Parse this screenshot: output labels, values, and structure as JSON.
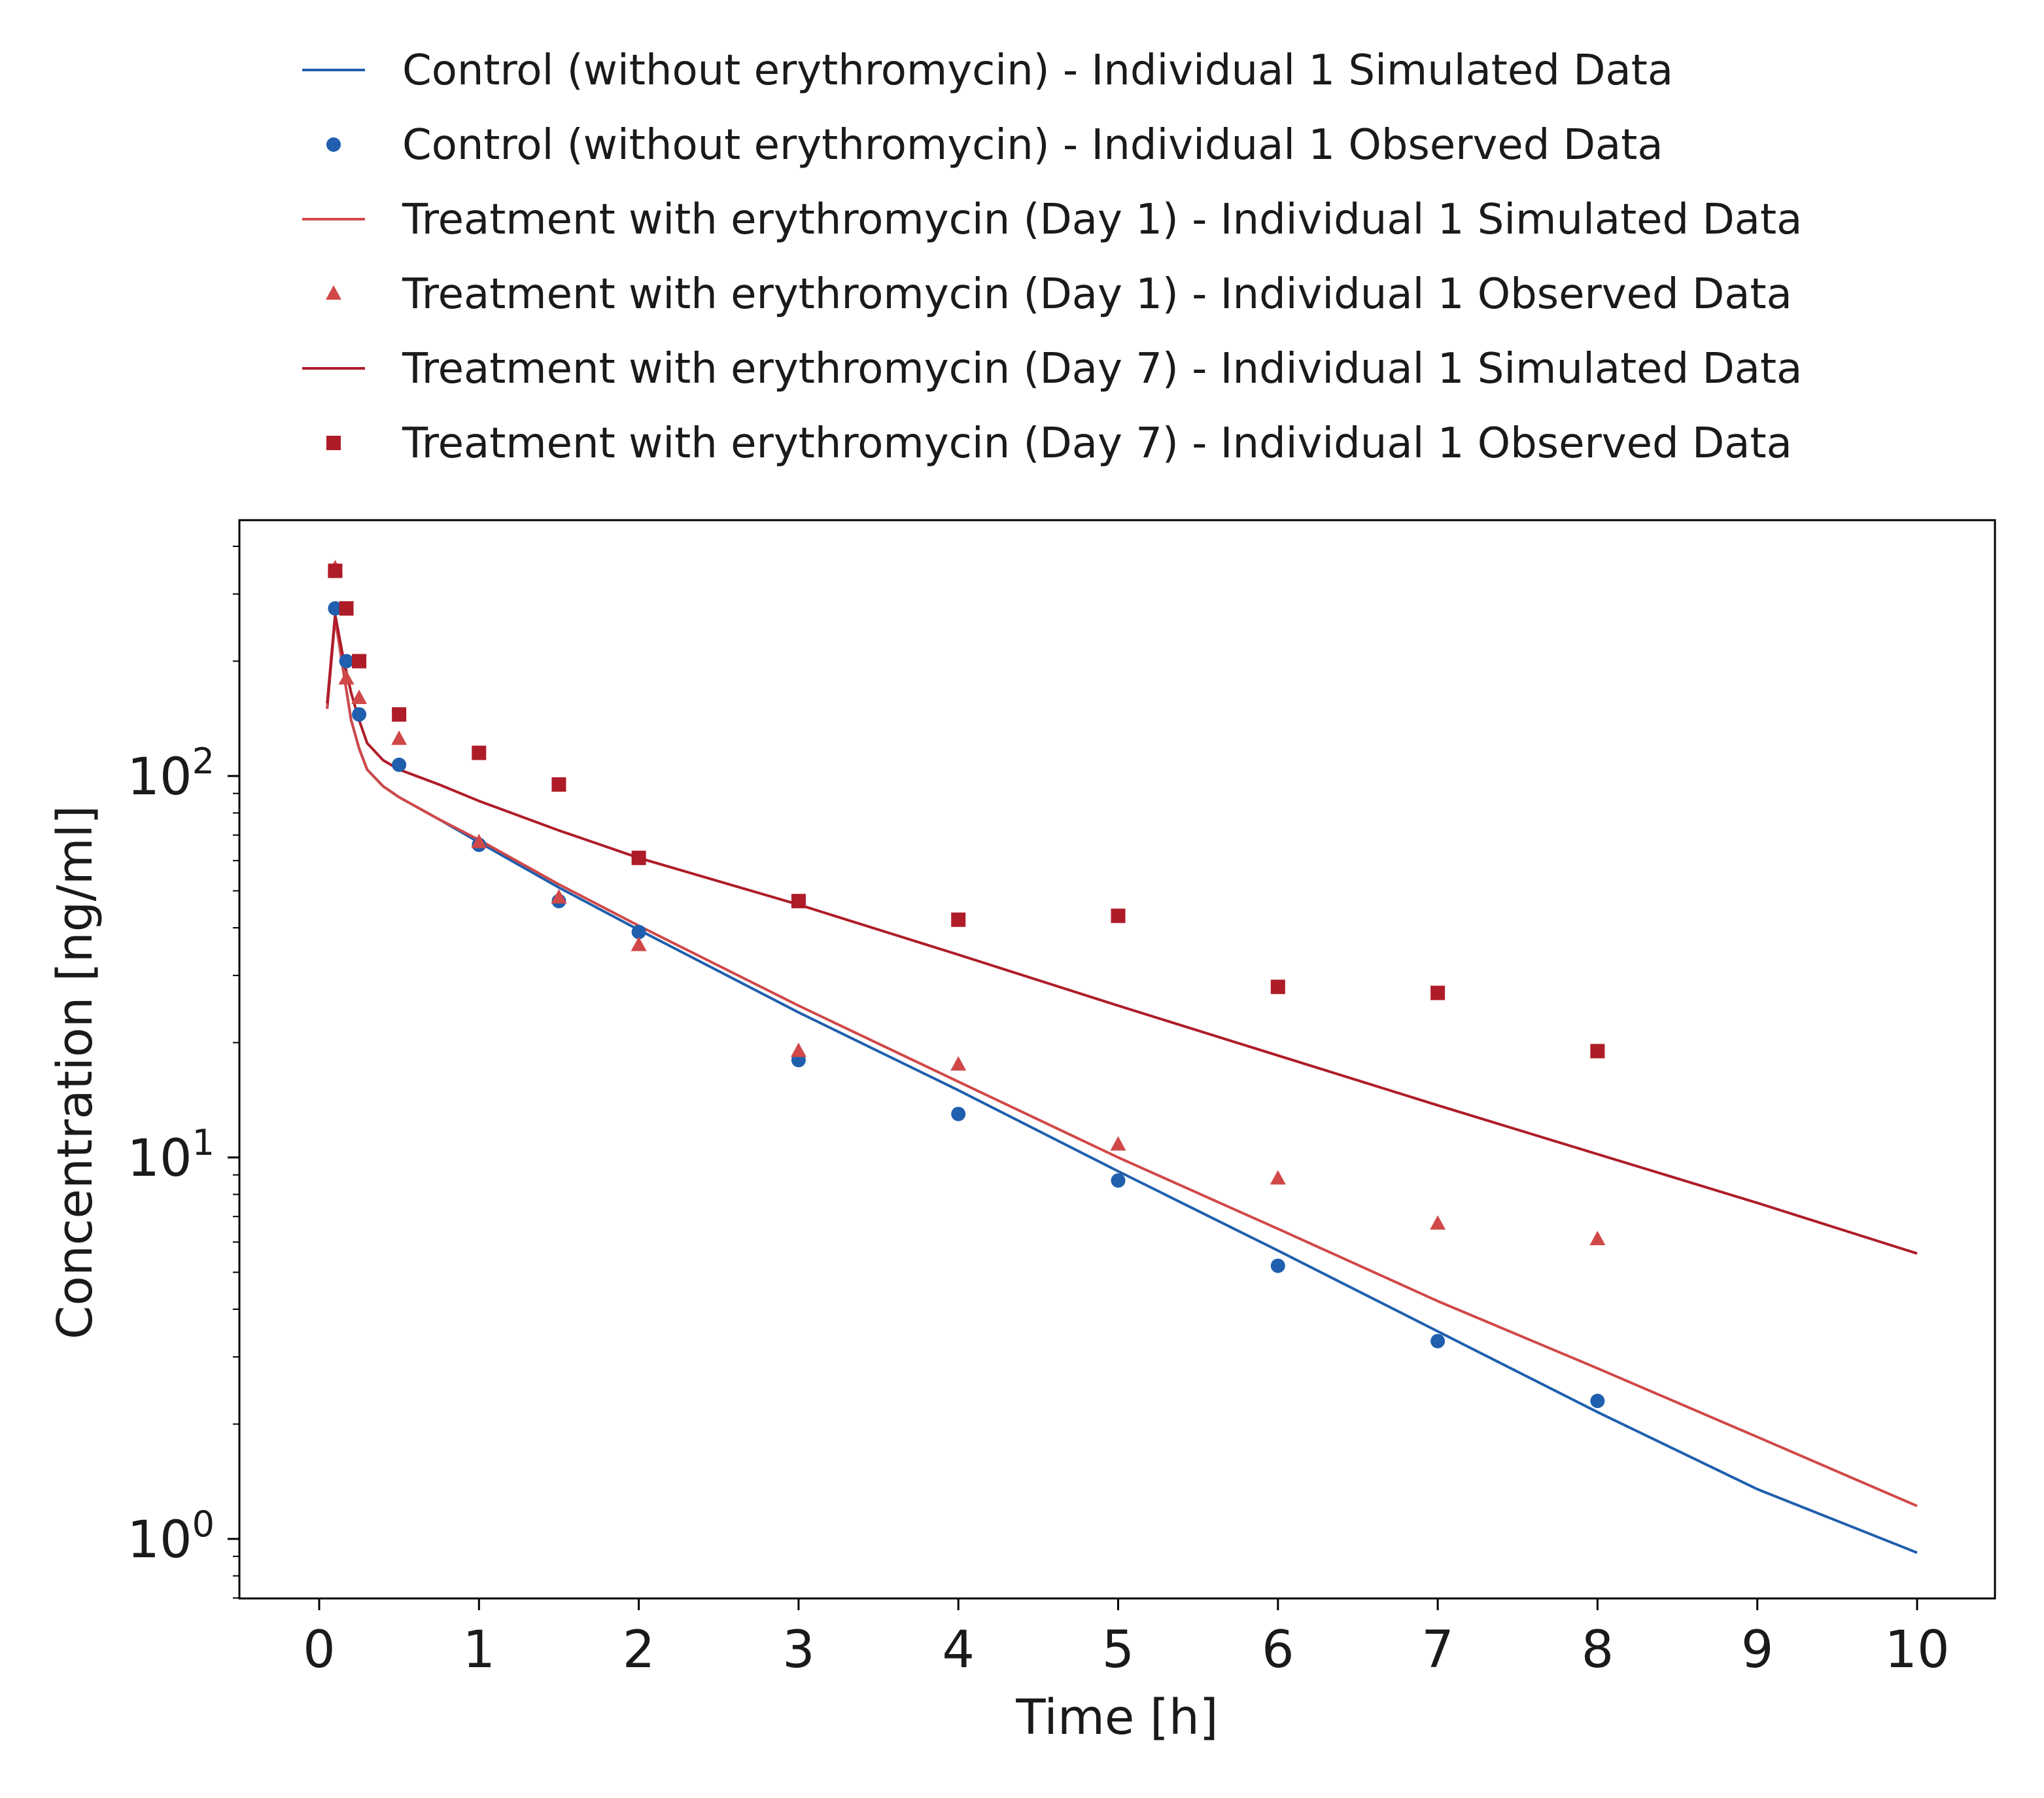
{
  "chart_data": {
    "type": "scatter",
    "xlabel": "Time [h]",
    "ylabel": "Concentration [ng/ml]",
    "xlim": [
      -0.5,
      10.5
    ],
    "ylim": [
      0.65,
      600
    ],
    "yscale": "log",
    "xticks": [
      0,
      1,
      2,
      3,
      4,
      5,
      6,
      7,
      8,
      9,
      10
    ],
    "yticks": [
      {
        "value": 1,
        "base": "10",
        "exp": "0"
      },
      {
        "value": 10,
        "base": "10",
        "exp": "1"
      },
      {
        "value": 100,
        "base": "10",
        "exp": "2"
      }
    ],
    "grid": false,
    "legend_position": "top",
    "series": [
      {
        "name": "Control (without erythromycin) - Individual 1 Simulated Data",
        "kind": "line",
        "color": "#1f5fad",
        "x": [
          0.05,
          0.1,
          0.15,
          0.2,
          0.25,
          0.3,
          0.4,
          0.5,
          0.75,
          1,
          1.5,
          2,
          3,
          4,
          5,
          6,
          7,
          8,
          9,
          10
        ],
        "y": [
          150,
          260,
          190,
          140,
          118,
          104,
          94,
          88,
          77,
          67,
          51,
          39.5,
          24,
          15,
          9.2,
          5.7,
          3.5,
          2.15,
          1.35,
          0.92
        ]
      },
      {
        "name": "Control (without erythromycin) - Individual 1 Observed Data",
        "kind": "marker",
        "marker": "circle",
        "color": "#1f5fad",
        "x": [
          0.1,
          0.17,
          0.25,
          0.5,
          1,
          1.5,
          2,
          3,
          4,
          5,
          6,
          7,
          8
        ],
        "y": [
          275,
          200,
          145,
          107,
          66,
          47,
          39,
          18,
          13,
          8.7,
          5.2,
          3.3,
          2.3
        ]
      },
      {
        "name": "Treatment with erythromycin (Day 1) - Individual 1 Simulated Data",
        "kind": "line",
        "color": "#d04848",
        "x": [
          0.05,
          0.1,
          0.15,
          0.2,
          0.25,
          0.3,
          0.4,
          0.5,
          0.75,
          1,
          1.5,
          2,
          3,
          4,
          5,
          6,
          7,
          8,
          9,
          10
        ],
        "y": [
          150,
          260,
          190,
          140,
          118,
          104,
          94,
          88,
          77,
          68,
          52,
          40.5,
          25,
          15.8,
          10,
          6.5,
          4.2,
          2.8,
          1.85,
          1.22
        ]
      },
      {
        "name": "Treatment with erythromycin (Day 1) - Individual 1 Observed Data",
        "kind": "marker",
        "marker": "triangle",
        "color": "#d04848",
        "x": [
          0.1,
          0.17,
          0.25,
          0.5,
          1,
          1.5,
          2,
          3,
          4,
          5,
          6,
          7,
          8
        ],
        "y": [
          350,
          180,
          160,
          125,
          67,
          48,
          36,
          19,
          17.5,
          10.8,
          8.8,
          6.7,
          6.1
        ]
      },
      {
        "name": "Treatment with erythromycin (Day 7) - Individual 1 Simulated Data",
        "kind": "line",
        "color": "#ae1c28",
        "x": [
          0.05,
          0.1,
          0.15,
          0.2,
          0.25,
          0.3,
          0.4,
          0.5,
          0.75,
          1,
          1.5,
          2,
          3,
          4,
          5,
          6,
          7,
          8,
          9,
          10
        ],
        "y": [
          155,
          265,
          205,
          165,
          140,
          122,
          110,
          104,
          95,
          86,
          72,
          61,
          46,
          34,
          25,
          18.5,
          13.7,
          10.2,
          7.6,
          5.6
        ]
      },
      {
        "name": "Treatment with erythromycin (Day 7) - Individual 1 Observed Data",
        "kind": "marker",
        "marker": "square",
        "color": "#ae1c28",
        "x": [
          0.1,
          0.17,
          0.25,
          0.5,
          1,
          1.5,
          2,
          3,
          4,
          5,
          6,
          7,
          8
        ],
        "y": [
          345,
          275,
          200,
          145,
          115,
          95,
          61,
          47,
          42,
          43,
          28,
          27,
          19
        ]
      }
    ]
  }
}
